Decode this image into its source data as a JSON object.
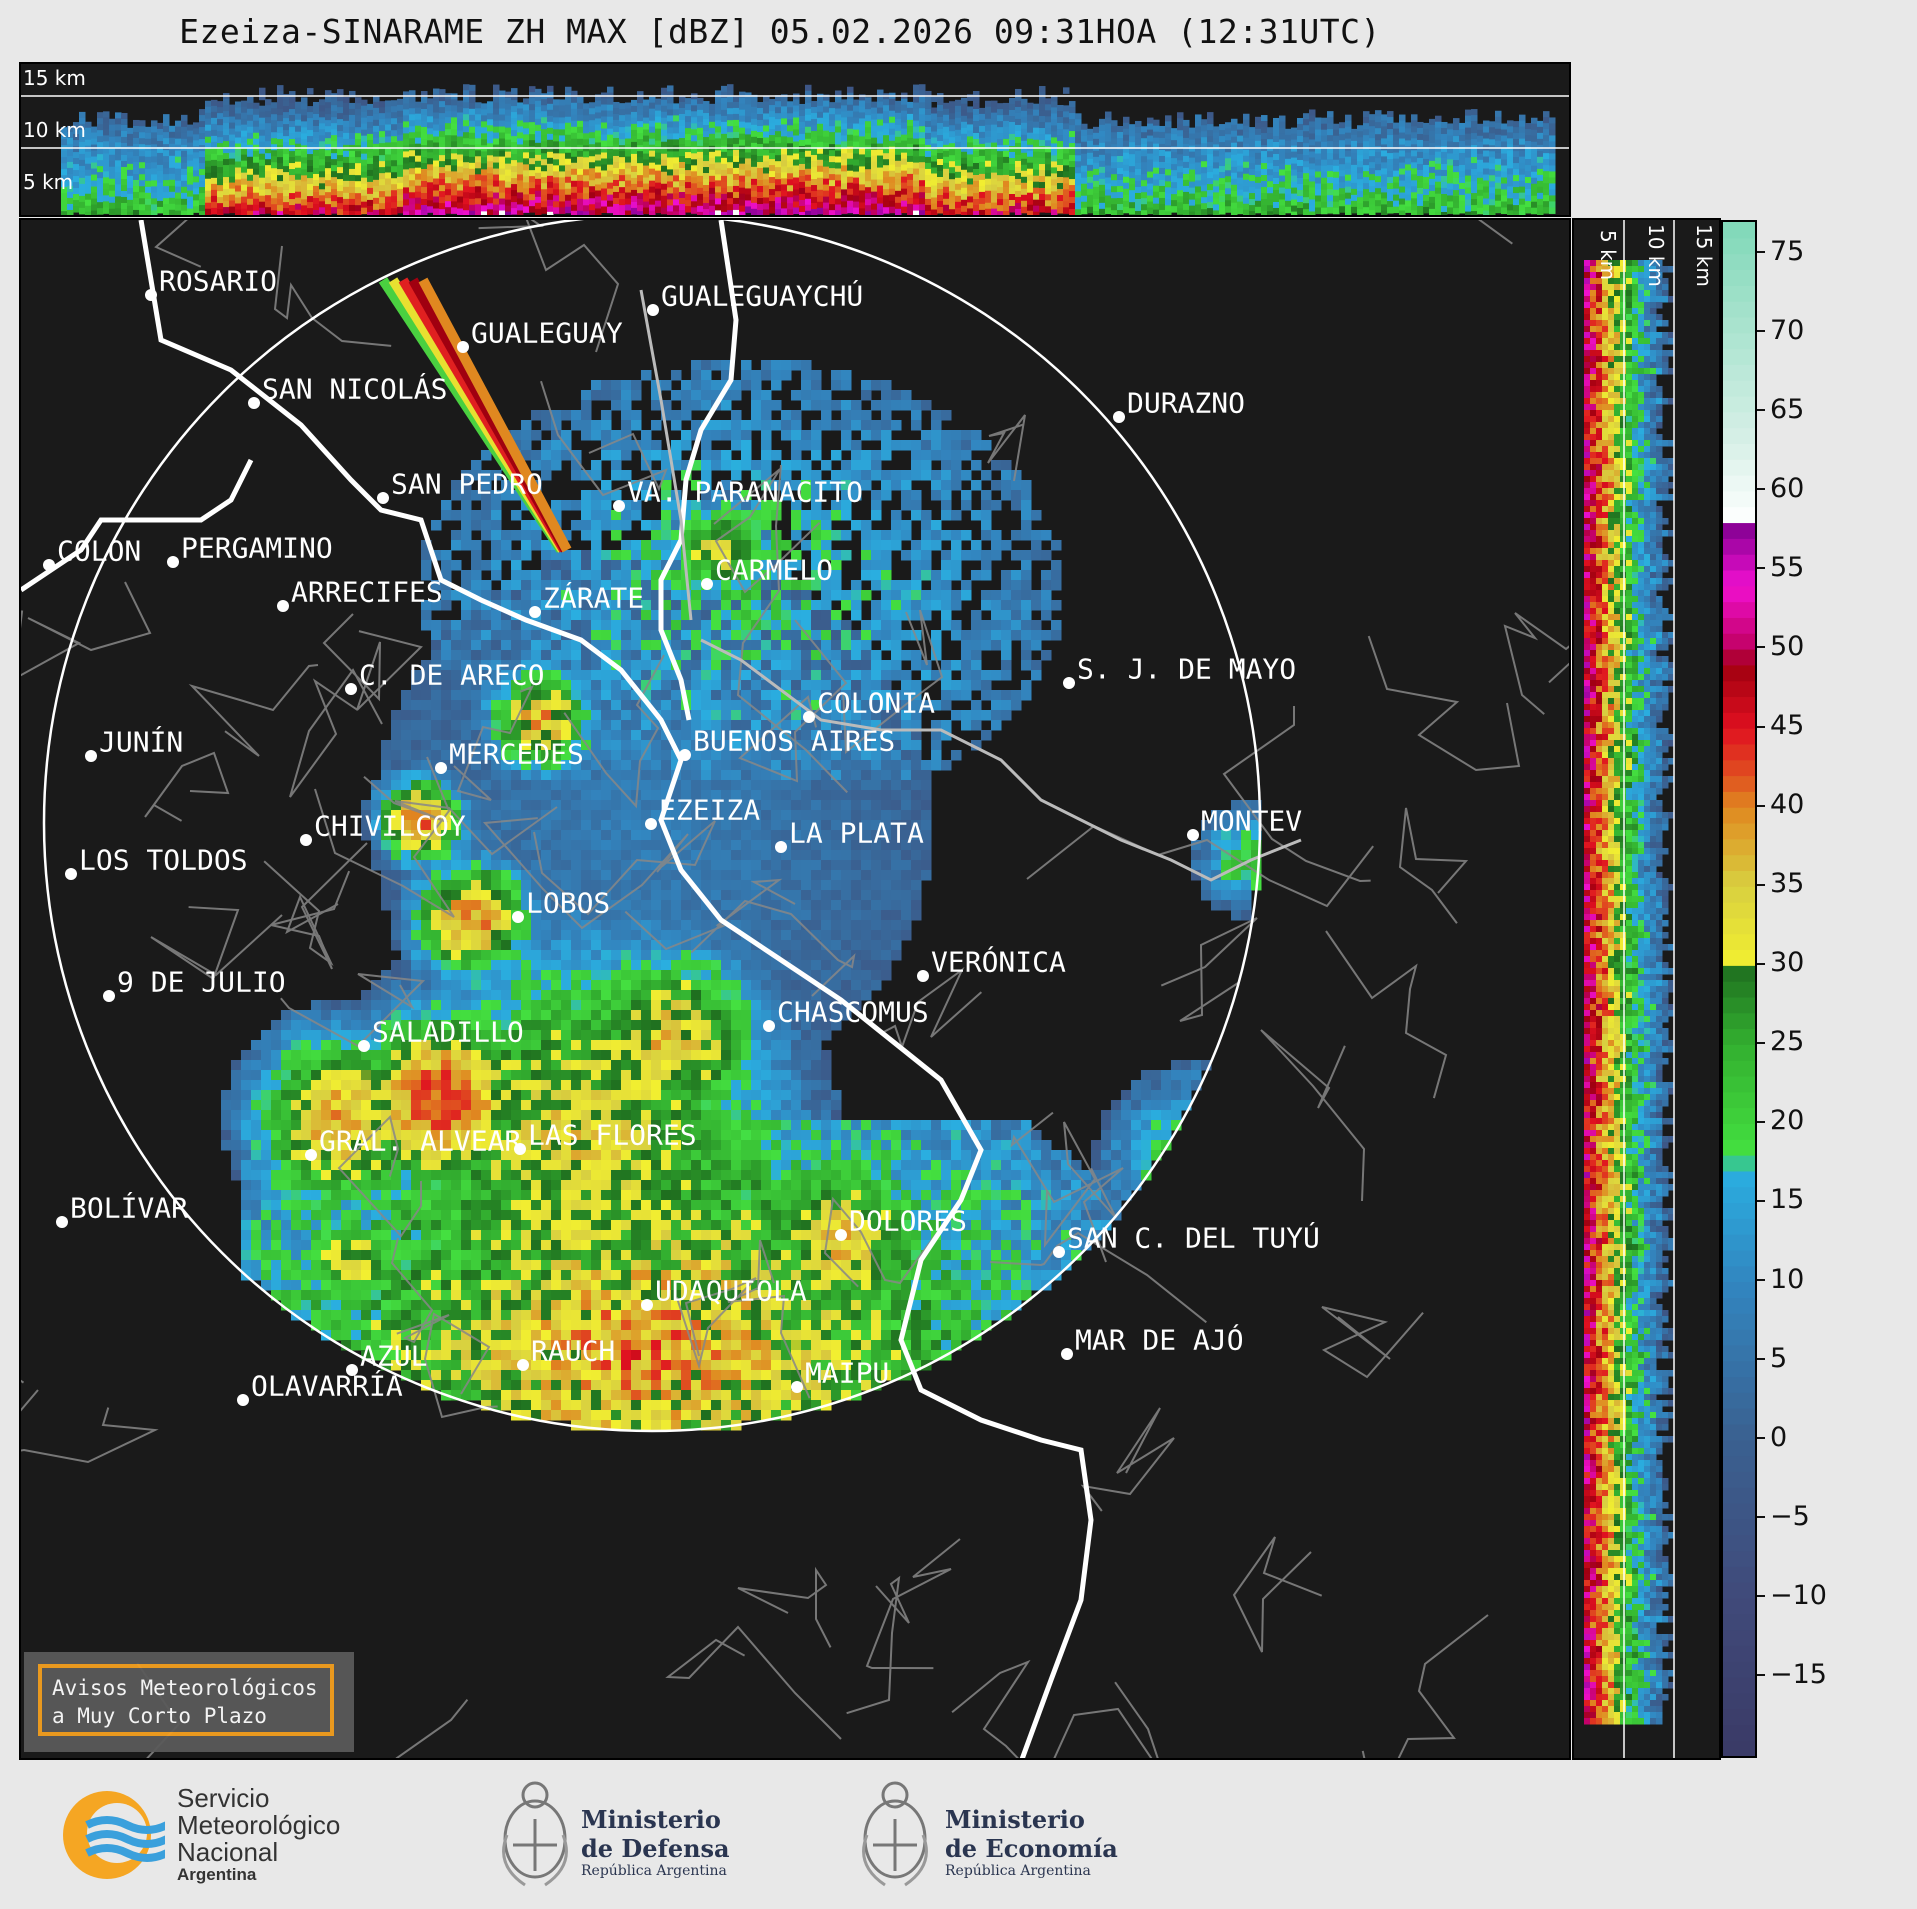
{
  "title": "Ezeiza-SINARAME ZH MAX [dBZ] 05.02.2026 09:31HOA (12:31UTC)",
  "top_heights": [
    "15 km",
    "10 km",
    "5 km"
  ],
  "side_heights": [
    "5 km",
    "10 km",
    "15 km"
  ],
  "colorbar": {
    "ticks": [
      "75",
      "70",
      "65",
      "60",
      "55",
      "50",
      "45",
      "40",
      "35",
      "30",
      "25",
      "20",
      "15",
      "10",
      "5",
      "0",
      "−5",
      "−10",
      "−15"
    ],
    "range": [
      -20,
      77
    ],
    "stops": [
      {
        "v": -20,
        "c": "#3a3a66"
      },
      {
        "v": -10,
        "c": "#404a7a"
      },
      {
        "v": 0,
        "c": "#3a6090"
      },
      {
        "v": 10,
        "c": "#3286c0"
      },
      {
        "v": 17,
        "c": "#2aaee0"
      },
      {
        "v": 18,
        "c": "#44e040"
      },
      {
        "v": 25,
        "c": "#33b030"
      },
      {
        "v": 30,
        "c": "#1f6e1f"
      },
      {
        "v": 30.01,
        "c": "#f2ef30"
      },
      {
        "v": 35,
        "c": "#d8d040"
      },
      {
        "v": 40,
        "c": "#e08820"
      },
      {
        "v": 42,
        "c": "#e05020"
      },
      {
        "v": 45,
        "c": "#e01020"
      },
      {
        "v": 49,
        "c": "#a00010"
      },
      {
        "v": 50,
        "c": "#c00060"
      },
      {
        "v": 54,
        "c": "#f010d0"
      },
      {
        "v": 58,
        "c": "#800090"
      },
      {
        "v": 58.01,
        "c": "#ffffff"
      },
      {
        "v": 63,
        "c": "#d8f0e8"
      },
      {
        "v": 77,
        "c": "#80d8b8"
      }
    ]
  },
  "cities": [
    {
      "name": "ROSARIO"
    },
    {
      "name": "GUALEGUAYCHÚ"
    },
    {
      "name": "GUALEGUAY"
    },
    {
      "name": "SAN NICOLÁS"
    },
    {
      "name": "DURAZNO"
    },
    {
      "name": "SAN PEDRO"
    },
    {
      "name": "VA. PARANACITO"
    },
    {
      "name": "COLON"
    },
    {
      "name": "PERGAMINO"
    },
    {
      "name": "CARMELO"
    },
    {
      "name": "ARRECIFES"
    },
    {
      "name": "ZÁRATE"
    },
    {
      "name": "S. J. DE MAYO"
    },
    {
      "name": "C. DE ARECO"
    },
    {
      "name": "COLONIA"
    },
    {
      "name": "JUNÍN"
    },
    {
      "name": "BUENOS AIRES"
    },
    {
      "name": "MERCEDES"
    },
    {
      "name": "EZEIZA"
    },
    {
      "name": "MONTEV"
    },
    {
      "name": "CHIVILCOY"
    },
    {
      "name": "LA PLATA"
    },
    {
      "name": "LOS TOLDOS"
    },
    {
      "name": "LOBOS"
    },
    {
      "name": "VERÓNICA"
    },
    {
      "name": "9 DE JULIO"
    },
    {
      "name": "CHASCOMUS"
    },
    {
      "name": "SALADILLO"
    },
    {
      "name": "GRAL. ALVEAR"
    },
    {
      "name": "LAS FLORES"
    },
    {
      "name": "BOLÍVAR"
    },
    {
      "name": "DOLORES"
    },
    {
      "name": "SAN C. DEL TUYÚ"
    },
    {
      "name": "UDAQUIOLA"
    },
    {
      "name": "MAR DE AJÓ"
    },
    {
      "name": "AZUL"
    },
    {
      "name": "RAUCH"
    },
    {
      "name": "MAIPU"
    },
    {
      "name": "OLAVARRÍA"
    }
  ],
  "alert": {
    "line1": "Avisos Meteorológicos",
    "line2": "a Muy Corto Plazo"
  },
  "logos": {
    "smn": {
      "l1": "Servicio",
      "l2": "Meteorológico",
      "l3": "Nacional",
      "l4": "Argentina"
    },
    "defensa": {
      "l1": "Ministerio",
      "l2": "de Defensa",
      "l3": "República Argentina"
    },
    "economia": {
      "l1": "Ministerio",
      "l2": "de Economía",
      "l3": "República Argentina"
    }
  }
}
